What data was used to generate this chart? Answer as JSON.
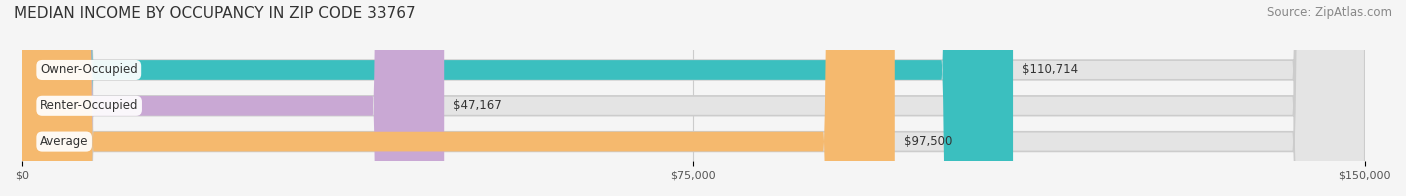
{
  "title": "MEDIAN INCOME BY OCCUPANCY IN ZIP CODE 33767",
  "source": "Source: ZipAtlas.com",
  "categories": [
    "Owner-Occupied",
    "Renter-Occupied",
    "Average"
  ],
  "values": [
    110714,
    47167,
    97500
  ],
  "bar_colors": [
    "#3bbfbf",
    "#c9a8d4",
    "#f5b96e"
  ],
  "label_colors": [
    "#3bbfbf",
    "#c9a8d4",
    "#f5b96e"
  ],
  "value_labels": [
    "$110,714",
    "$47,167",
    "$97,500"
  ],
  "xlim": [
    0,
    150000
  ],
  "xticks": [
    0,
    75000,
    150000
  ],
  "xtick_labels": [
    "$0",
    "$75,000",
    "$150,000"
  ],
  "background_color": "#f5f5f5",
  "bar_bg_color": "#e8e8e8",
  "title_fontsize": 11,
  "source_fontsize": 8.5,
  "bar_height": 0.55,
  "bar_gap": 0.35
}
